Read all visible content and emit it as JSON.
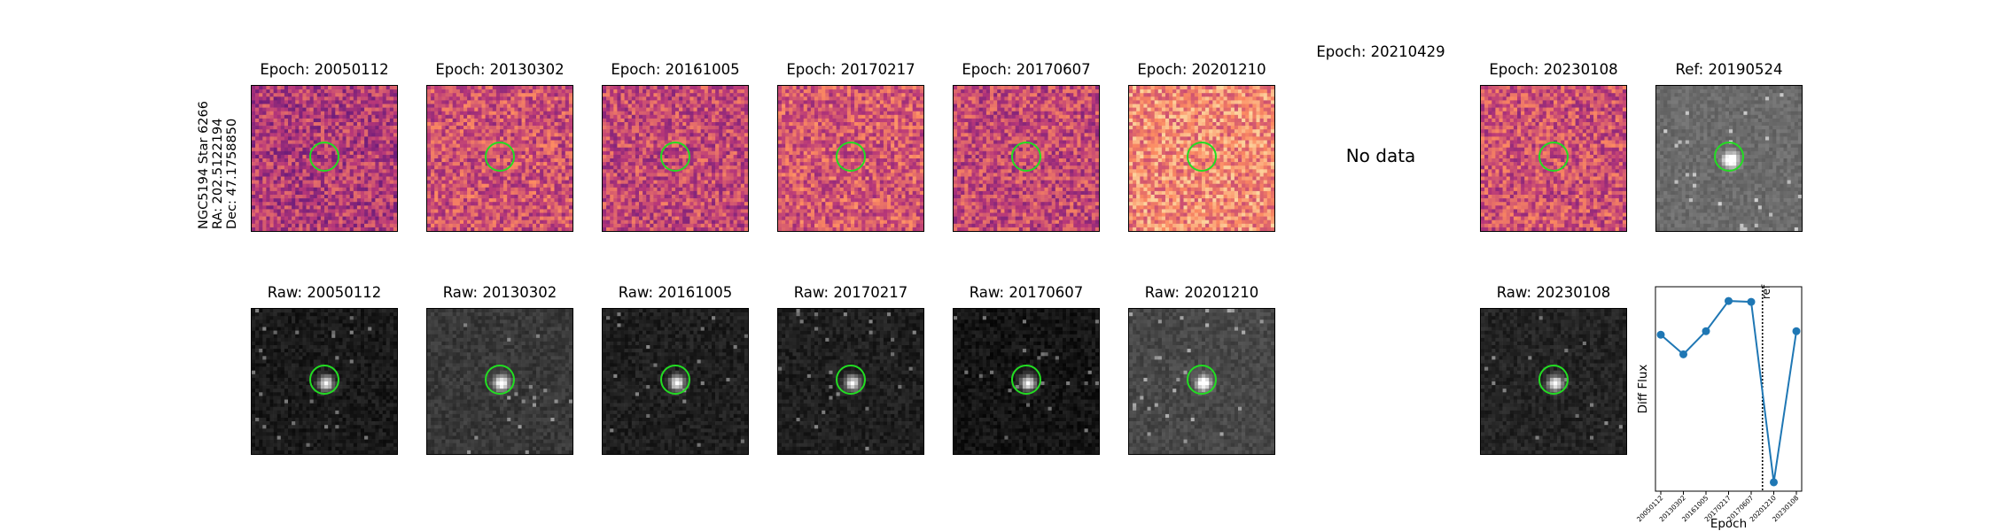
{
  "star_label": {
    "name": "NGC5194 Star 6266",
    "ra": "RA: 202.5122194",
    "dec": "Dec: 47.1758850"
  },
  "diff_row": [
    {
      "title": "Epoch: 20050112",
      "has_image": true,
      "colormap": "magma",
      "brightness": 0.5
    },
    {
      "title": "Epoch: 20130302",
      "has_image": true,
      "colormap": "magma",
      "brightness": 0.58
    },
    {
      "title": "Epoch: 20161005",
      "has_image": true,
      "colormap": "magma",
      "brightness": 0.55
    },
    {
      "title": "Epoch: 20170217",
      "has_image": true,
      "colormap": "magma",
      "brightness": 0.6
    },
    {
      "title": "Epoch: 20170607",
      "has_image": true,
      "colormap": "magma",
      "brightness": 0.55
    },
    {
      "title": "Epoch: 20201210",
      "has_image": true,
      "colormap": "magma",
      "brightness": 0.74
    },
    {
      "title": "Epoch: 20210429",
      "has_image": false,
      "no_data_text": "No data"
    },
    {
      "title": "Epoch: 20230108",
      "has_image": true,
      "colormap": "magma",
      "brightness": 0.58
    },
    {
      "title": "Ref: 20190524",
      "has_image": true,
      "colormap": "gray",
      "brightness": 0.42
    }
  ],
  "raw_row": [
    {
      "title": "Raw: 20050112",
      "brightness": 0.1
    },
    {
      "title": "Raw: 20130302",
      "brightness": 0.22
    },
    {
      "title": "Raw: 20161005",
      "brightness": 0.12
    },
    {
      "title": "Raw: 20170217",
      "brightness": 0.12
    },
    {
      "title": "Raw: 20170607",
      "brightness": 0.08
    },
    {
      "title": "Raw: 20201210",
      "brightness": 0.28
    },
    {
      "title": "",
      "brightness": null
    },
    {
      "title": "Raw: 20230108",
      "brightness": 0.14
    }
  ],
  "marker_color": "#22dd22",
  "chart_data": {
    "type": "line",
    "categories": [
      "20050112",
      "20130302",
      "20161005",
      "20170217",
      "20170607",
      "20201210",
      "20230108"
    ],
    "values": [
      0.58,
      0.47,
      0.6,
      0.77,
      0.765,
      -0.25,
      0.6
    ],
    "ylabel": "Diff Flux",
    "xlabel": "Epoch",
    "ylim": [
      -0.3,
      0.85
    ],
    "ref_line_after_index": 4,
    "ref_label": "ref",
    "line_color": "#1f77b4",
    "grid": false
  },
  "colors": {
    "magma_low": "#2b1060",
    "magma_mid": "#c43c6e",
    "magma_high": "#fcf5b8",
    "series": "#1f77b4"
  }
}
